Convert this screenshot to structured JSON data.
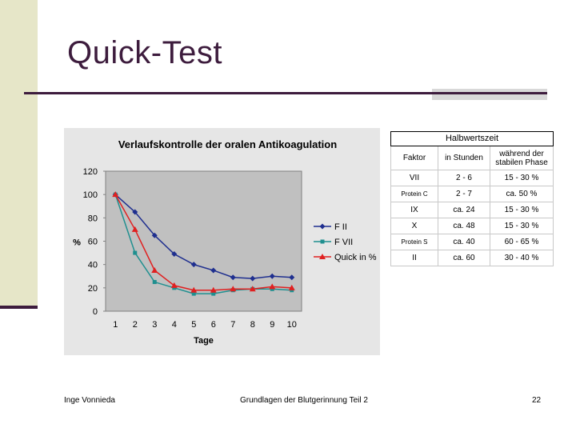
{
  "slide": {
    "title": "Quick-Test",
    "footer_left": "Inge Vonnieda",
    "footer_center": "Grundlagen der Blutgerinnung Teil 2",
    "page_number": "22"
  },
  "chart_data": {
    "type": "line",
    "title": "Verlaufskontrolle der oralen Antikoagulation",
    "xlabel": "Tage",
    "ylabel": "%",
    "x": [
      1,
      2,
      3,
      4,
      5,
      6,
      7,
      8,
      9,
      10
    ],
    "ylim": [
      0,
      120
    ],
    "yticks": [
      0,
      20,
      40,
      60,
      80,
      100,
      120
    ],
    "grid": false,
    "legend": "right",
    "series": [
      {
        "name": "F II",
        "color": "#1f2f8f",
        "marker": "diamond",
        "values": [
          100,
          85,
          65,
          49,
          40,
          35,
          29,
          28,
          30,
          29
        ]
      },
      {
        "name": "F VII",
        "color": "#1f8f8f",
        "marker": "square",
        "values": [
          100,
          50,
          25,
          20,
          15,
          15,
          18,
          19,
          19,
          18
        ]
      },
      {
        "name": "Quick in %",
        "color": "#e02020",
        "marker": "triangle",
        "values": [
          100,
          70,
          35,
          22,
          18,
          18,
          19,
          19,
          21,
          20
        ]
      }
    ]
  },
  "table": {
    "caption": "Halbwertszeit",
    "headers": [
      "Faktor",
      "in Stunden",
      "während der stabilen Phase"
    ],
    "rows": [
      [
        "VII",
        "2 - 6",
        "15 - 30 %"
      ],
      [
        "Protein C",
        "2 - 7",
        "ca. 50 %"
      ],
      [
        "IX",
        "ca. 24",
        "15 - 30 %"
      ],
      [
        "X",
        "ca. 48",
        "15 - 30 %"
      ],
      [
        "Protein S",
        "ca. 40",
        "60 - 65 %"
      ],
      [
        "II",
        "ca. 60",
        "30 - 40 %"
      ]
    ]
  }
}
